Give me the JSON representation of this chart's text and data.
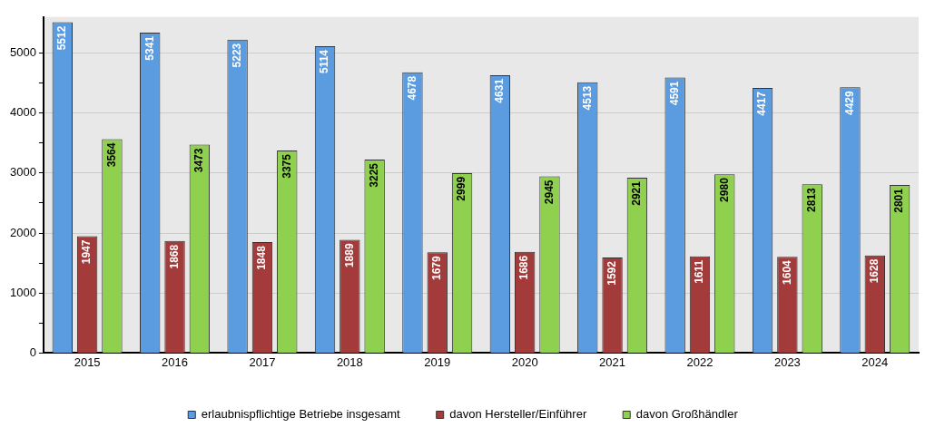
{
  "chart_data": {
    "type": "bar",
    "categories": [
      "2015",
      "2016",
      "2017",
      "2018",
      "2019",
      "2020",
      "2021",
      "2022",
      "2023",
      "2024"
    ],
    "series": [
      {
        "name": "erlaubnispflichtige Betriebe insgesamt",
        "color": "#5b9be0",
        "values": [
          5512,
          5341,
          5223,
          5114,
          4678,
          4631,
          4513,
          4591,
          4417,
          4429
        ]
      },
      {
        "name": "davon Hersteller/Einführer",
        "color": "#a33b3b",
        "values": [
          1947,
          1868,
          1848,
          1889,
          1679,
          1686,
          1592,
          1611,
          1604,
          1628
        ]
      },
      {
        "name": "davon Großhändler",
        "color": "#8fd14f",
        "values": [
          3564,
          3473,
          3375,
          3225,
          2999,
          2945,
          2921,
          2980,
          2813,
          2801
        ]
      }
    ],
    "ylim": [
      0,
      5600
    ],
    "yticks": [
      0,
      {
        "value": 500,
        "label": null
      },
      1000,
      {
        "value": 1500,
        "label": null
      },
      2000,
      {
        "value": 2500,
        "label": null
      },
      3000,
      {
        "value": 3500,
        "label": null
      },
      4000,
      {
        "value": 4500,
        "label": null
      },
      5000
    ],
    "grid": "y",
    "legend": "bottom",
    "data_labels": true
  }
}
